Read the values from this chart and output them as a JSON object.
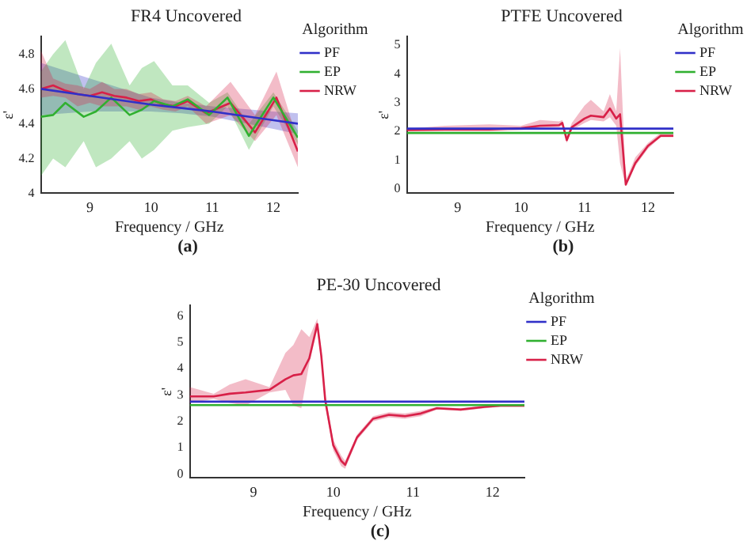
{
  "chart_data": [
    {
      "type": "line",
      "title": "FR4 Uncovered",
      "xlabel": "Frequency / GHz",
      "ylabel": "ε'",
      "xlim": [
        8.2,
        12.4
      ],
      "xticks": [
        9,
        10,
        11,
        12
      ],
      "ylim": [
        4,
        4.9
      ],
      "yticks": [
        4,
        4.2,
        4.4,
        4.6,
        4.8
      ],
      "grid": false,
      "legend": "right",
      "legend_title": "Algorithm",
      "marker": "none",
      "annotations": [
        "(a)"
      ],
      "series": [
        {
          "name": "PF",
          "color": "#3030c8",
          "x": [
            8.2,
            9,
            10,
            10.5,
            11,
            12,
            12.4
          ],
          "values": [
            4.6,
            4.56,
            4.51,
            4.49,
            4.47,
            4.42,
            4.4
          ],
          "lower": [
            4.45,
            4.47,
            4.47,
            4.46,
            4.44,
            4.37,
            4.34
          ],
          "upper": [
            4.75,
            4.66,
            4.55,
            4.52,
            4.5,
            4.47,
            4.46
          ]
        },
        {
          "name": "EP",
          "color": "#30b030",
          "x": [
            8.2,
            8.4,
            8.6,
            8.9,
            9.1,
            9.35,
            9.65,
            9.85,
            10.05,
            10.35,
            10.6,
            10.95,
            11.25,
            11.6,
            12,
            12.4
          ],
          "values": [
            4.44,
            4.45,
            4.52,
            4.44,
            4.47,
            4.55,
            4.45,
            4.48,
            4.53,
            4.5,
            4.54,
            4.45,
            4.55,
            4.33,
            4.55,
            4.32
          ],
          "lower": [
            4.1,
            4.2,
            4.15,
            4.3,
            4.15,
            4.2,
            4.3,
            4.2,
            4.25,
            4.36,
            4.38,
            4.4,
            4.5,
            4.25,
            4.5,
            4.28
          ],
          "upper": [
            4.7,
            4.8,
            4.88,
            4.6,
            4.75,
            4.86,
            4.62,
            4.72,
            4.76,
            4.62,
            4.62,
            4.52,
            4.58,
            4.4,
            4.58,
            4.36
          ]
        },
        {
          "name": "NRW",
          "color": "#d82048",
          "x": [
            8.2,
            8.4,
            8.6,
            8.8,
            9,
            9.2,
            9.4,
            9.6,
            9.8,
            10,
            10.2,
            10.4,
            10.6,
            10.9,
            11.3,
            11.7,
            12.05,
            12.4
          ],
          "values": [
            4.6,
            4.62,
            4.59,
            4.57,
            4.56,
            4.58,
            4.56,
            4.55,
            4.53,
            4.54,
            4.51,
            4.5,
            4.53,
            4.46,
            4.52,
            4.35,
            4.55,
            4.24
          ],
          "lower": [
            4.55,
            4.56,
            4.55,
            4.5,
            4.52,
            4.5,
            4.5,
            4.5,
            4.48,
            4.5,
            4.48,
            4.47,
            4.5,
            4.4,
            4.45,
            4.3,
            4.45,
            4.15
          ],
          "upper": [
            4.82,
            4.66,
            4.63,
            4.62,
            4.6,
            4.64,
            4.6,
            4.6,
            4.57,
            4.58,
            4.54,
            4.53,
            4.56,
            4.5,
            4.64,
            4.45,
            4.7,
            4.3
          ]
        }
      ]
    },
    {
      "type": "line",
      "title": "PTFE Uncovered",
      "xlabel": "Frequency / GHz",
      "ylabel": "ε'",
      "xlim": [
        8.2,
        12.4
      ],
      "xticks": [
        9,
        10,
        11,
        12
      ],
      "ylim": [
        -0.15,
        5.3
      ],
      "yticks": [
        0,
        1,
        2,
        3,
        4,
        5
      ],
      "grid": false,
      "legend": "right",
      "legend_title": "Algorithm",
      "marker": "none",
      "annotations": [
        "(b)"
      ],
      "series": [
        {
          "name": "PF",
          "color": "#3030c8",
          "x": [
            8.2,
            12.4
          ],
          "values": [
            2.1,
            2.1
          ]
        },
        {
          "name": "EP",
          "color": "#30b030",
          "x": [
            8.2,
            12.4
          ],
          "values": [
            1.95,
            1.95
          ]
        },
        {
          "name": "NRW",
          "color": "#d82048",
          "x": [
            8.2,
            8.8,
            9.5,
            10,
            10.3,
            10.6,
            10.65,
            10.72,
            10.8,
            11,
            11.1,
            11.3,
            11.4,
            11.5,
            11.56,
            11.65,
            11.8,
            12,
            12.2,
            12.4
          ],
          "values": [
            2.05,
            2.07,
            2.07,
            2.12,
            2.2,
            2.22,
            2.3,
            1.7,
            2.15,
            2.45,
            2.55,
            2.5,
            2.8,
            2.45,
            2.6,
            0.15,
            0.9,
            1.5,
            1.85,
            1.85
          ],
          "lower": [
            2,
            2,
            2,
            2.05,
            2.1,
            2.15,
            2.2,
            1.6,
            2.05,
            2.3,
            2.4,
            2.35,
            2.5,
            2.2,
            0.9,
            0.1,
            0.8,
            1.4,
            1.8,
            1.8
          ],
          "upper": [
            2.1,
            2.2,
            2.25,
            2.2,
            2.4,
            2.35,
            2.4,
            1.85,
            2.3,
            2.9,
            3.1,
            2.7,
            3.3,
            2.7,
            4.9,
            0.3,
            1.1,
            1.6,
            1.95,
            1.95
          ]
        }
      ]
    },
    {
      "type": "line",
      "title": "PE-30 Uncovered",
      "xlabel": "Frequency / GHz",
      "ylabel": "ε'",
      "xlim": [
        8.2,
        12.4
      ],
      "xticks": [
        9,
        10,
        11,
        12
      ],
      "ylim": [
        -0.15,
        6.4
      ],
      "yticks": [
        0,
        1,
        2,
        3,
        4,
        5,
        6
      ],
      "grid": false,
      "legend": "right",
      "legend_title": "Algorithm",
      "marker": "none",
      "annotations": [
        "(c)"
      ],
      "series": [
        {
          "name": "PF",
          "color": "#3030c8",
          "x": [
            8.2,
            12.4
          ],
          "values": [
            2.75,
            2.75
          ]
        },
        {
          "name": "EP",
          "color": "#30b030",
          "x": [
            8.2,
            12.4
          ],
          "values": [
            2.62,
            2.62
          ]
        },
        {
          "name": "NRW",
          "color": "#d82048",
          "x": [
            8.2,
            8.5,
            8.7,
            8.9,
            9.2,
            9.4,
            9.5,
            9.6,
            9.7,
            9.8,
            9.85,
            9.9,
            10,
            10.1,
            10.15,
            10.3,
            10.5,
            10.7,
            10.9,
            11.1,
            11.3,
            11.6,
            11.9,
            12.1,
            12.4
          ],
          "values": [
            2.95,
            2.95,
            3.05,
            3.1,
            3.2,
            3.6,
            3.75,
            3.8,
            4.4,
            5.7,
            4.5,
            2.8,
            1.1,
            0.5,
            0.35,
            1.4,
            2.1,
            2.25,
            2.2,
            2.3,
            2.5,
            2.45,
            2.55,
            2.6,
            2.6
          ],
          "lower": [
            2.7,
            2.85,
            2.7,
            2.6,
            3.1,
            3.2,
            2.6,
            2.5,
            4.2,
            5.5,
            4.3,
            2.6,
            0.9,
            0.3,
            0.2,
            1.3,
            2,
            2.15,
            2.1,
            2.2,
            2.45,
            2.4,
            2.5,
            2.55,
            2.55
          ],
          "upper": [
            3.3,
            3.05,
            3.4,
            3.6,
            3.3,
            4.6,
            4.9,
            5.5,
            5.2,
            5.9,
            4.7,
            3,
            1.3,
            0.7,
            0.5,
            1.5,
            2.2,
            2.35,
            2.3,
            2.4,
            2.55,
            2.5,
            2.6,
            2.65,
            2.65
          ]
        }
      ]
    }
  ]
}
